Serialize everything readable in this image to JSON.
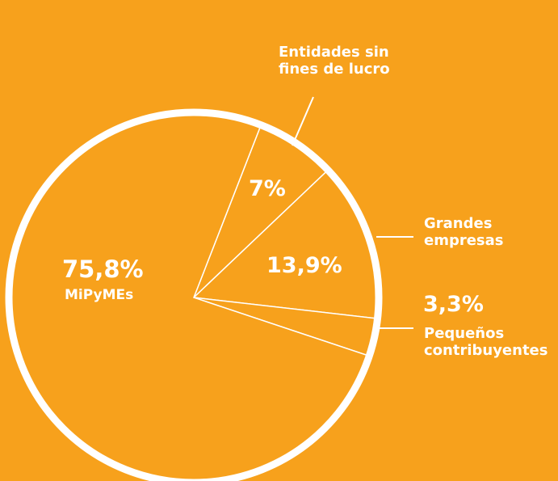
{
  "chart_data": {
    "type": "pie",
    "categories": [
      "Entidades sin fines de lucro",
      "Grandes empresas",
      "Pequeños contribuyentes",
      "MiPyMEs"
    ],
    "values": [
      7,
      13.9,
      3.3,
      75.8
    ],
    "value_labels": [
      "7%",
      "13,9%",
      "3,3%",
      "75,8%"
    ],
    "color": "#f7a11c"
  }
}
